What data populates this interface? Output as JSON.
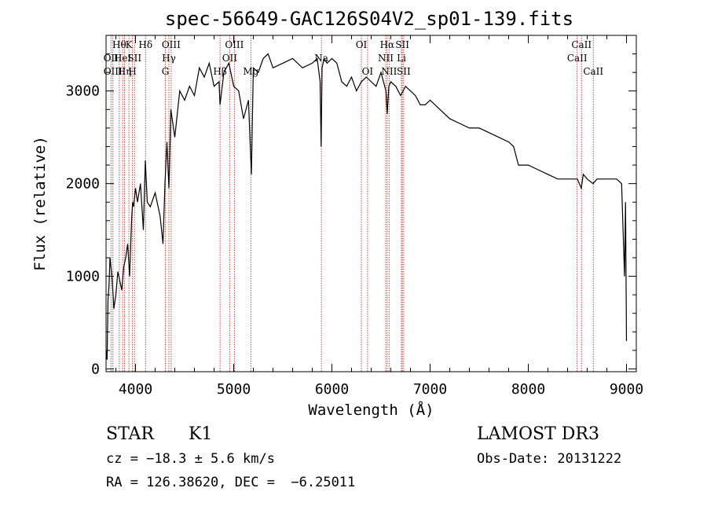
{
  "chart_data": {
    "type": "line",
    "title": "spec-56649-GAC126S04V2_sp01-139.fits",
    "xlabel": "Wavelength (Å)",
    "ylabel": "Flux (relative)",
    "xlim": [
      3700,
      9100
    ],
    "ylim": [
      -30,
      3600
    ],
    "xticks": [
      4000,
      5000,
      6000,
      7000,
      8000,
      9000
    ],
    "yticks": [
      0,
      1000,
      2000,
      3000
    ],
    "series": [
      {
        "name": "flux",
        "x": [
          3700,
          3710,
          3720,
          3730,
          3740,
          3760,
          3780,
          3800,
          3820,
          3840,
          3860,
          3880,
          3900,
          3920,
          3940,
          3960,
          3970,
          3980,
          4000,
          4020,
          4050,
          4080,
          4100,
          4120,
          4150,
          4200,
          4250,
          4280,
          4300,
          4320,
          4340,
          4360,
          4380,
          4400,
          4450,
          4500,
          4550,
          4600,
          4650,
          4700,
          4750,
          4800,
          4850,
          4861,
          4900,
          4950,
          5000,
          5050,
          5100,
          5150,
          5180,
          5200,
          5250,
          5300,
          5350,
          5400,
          5500,
          5600,
          5700,
          5800,
          5850,
          5880,
          5890,
          5900,
          5920,
          5950,
          6000,
          6050,
          6100,
          6150,
          6200,
          6250,
          6300,
          6350,
          6400,
          6450,
          6500,
          6550,
          6563,
          6580,
          6600,
          6650,
          6700,
          6750,
          6800,
          6850,
          6900,
          6950,
          7000,
          7100,
          7200,
          7300,
          7400,
          7500,
          7600,
          7700,
          7800,
          7850,
          7900,
          8000,
          8100,
          8200,
          8300,
          8400,
          8500,
          8540,
          8560,
          8600,
          8660,
          8700,
          8800,
          8900,
          8950,
          8980,
          8990,
          9000
        ],
        "values": [
          200,
          100,
          750,
          900,
          1200,
          1000,
          650,
          800,
          1050,
          950,
          850,
          1100,
          1200,
          1350,
          1000,
          1600,
          1800,
          1750,
          1950,
          1800,
          2000,
          1500,
          2250,
          1800,
          1750,
          1900,
          1650,
          1350,
          2000,
          2450,
          1950,
          2800,
          2650,
          2500,
          3000,
          2900,
          3050,
          2950,
          3250,
          3150,
          3300,
          3050,
          3100,
          2850,
          3200,
          3300,
          3050,
          3000,
          2700,
          2900,
          2100,
          3250,
          3200,
          3350,
          3400,
          3250,
          3300,
          3350,
          3250,
          3300,
          3350,
          3100,
          2400,
          3250,
          3350,
          3300,
          3350,
          3300,
          3100,
          3050,
          3150,
          3000,
          3100,
          3150,
          3100,
          3050,
          3200,
          3000,
          2750,
          3050,
          3100,
          3050,
          2950,
          3050,
          3000,
          2950,
          2850,
          2850,
          2900,
          2800,
          2700,
          2650,
          2600,
          2600,
          2550,
          2500,
          2450,
          2400,
          2200,
          2200,
          2150,
          2100,
          2050,
          2050,
          2050,
          1950,
          2100,
          2050,
          2000,
          2050,
          2050,
          2050,
          2000,
          1000,
          1800,
          300
        ]
      }
    ],
    "lines": [
      {
        "wl": 3750,
        "row": 1,
        "label": "OII"
      },
      {
        "wl": 3770,
        "row": 2,
        "label": "OIII"
      },
      {
        "wl": 3835,
        "row": 0,
        "label": "Hθ"
      },
      {
        "wl": 3869,
        "row": 1,
        "label": "HeI"
      },
      {
        "wl": 3889,
        "row": 2,
        "label": "Hη"
      },
      {
        "wl": 3933,
        "row": 0,
        "label": "K"
      },
      {
        "wl": 3969,
        "row": 2,
        "label": "H"
      },
      {
        "wl": 3990,
        "row": 1,
        "label": "SII"
      },
      {
        "wl": 4102,
        "row": 0,
        "label": "Hδ"
      },
      {
        "wl": 4304,
        "row": 2,
        "label": "G"
      },
      {
        "wl": 4340,
        "row": 1,
        "label": "Hγ"
      },
      {
        "wl": 4363,
        "row": 0,
        "label": "OIII"
      },
      {
        "wl": 4861,
        "row": 3,
        "label": "Hβ"
      },
      {
        "wl": 4959,
        "row": 1,
        "label": "OII"
      },
      {
        "wl": 5007,
        "row": 0,
        "label": "OIII"
      },
      {
        "wl": 5175,
        "row": 2,
        "label": "Mg"
      },
      {
        "wl": 5893,
        "row": 1,
        "label": "Na"
      },
      {
        "wl": 6300,
        "row": 0,
        "label": "OI"
      },
      {
        "wl": 6363,
        "row": 2,
        "label": "OI"
      },
      {
        "wl": 6548,
        "row": 1,
        "label": "NII"
      },
      {
        "wl": 6563,
        "row": 0,
        "label": "Hα"
      },
      {
        "wl": 6583,
        "row": 2,
        "label": "NII"
      },
      {
        "wl": 6708,
        "row": 1,
        "label": "Li"
      },
      {
        "wl": 6717,
        "row": 0,
        "label": "SII"
      },
      {
        "wl": 6731,
        "row": 2,
        "label": "SII"
      },
      {
        "wl": 8498,
        "row": 1,
        "label": "CaII"
      },
      {
        "wl": 8542,
        "row": 0,
        "label": "CaII"
      },
      {
        "wl": 8662,
        "row": 2,
        "label": "CaII"
      }
    ],
    "line_color": "#c0392b",
    "series_color": "#000000"
  },
  "info": {
    "class_label": "STAR",
    "subclass": "K1",
    "survey": "LAMOST DR3",
    "cz": "cz = −18.3 ± 5.6 km/s",
    "obs_date": "Obs-Date: 20131222",
    "coords": "RA = 126.38620, DEC =  −6.25011"
  }
}
